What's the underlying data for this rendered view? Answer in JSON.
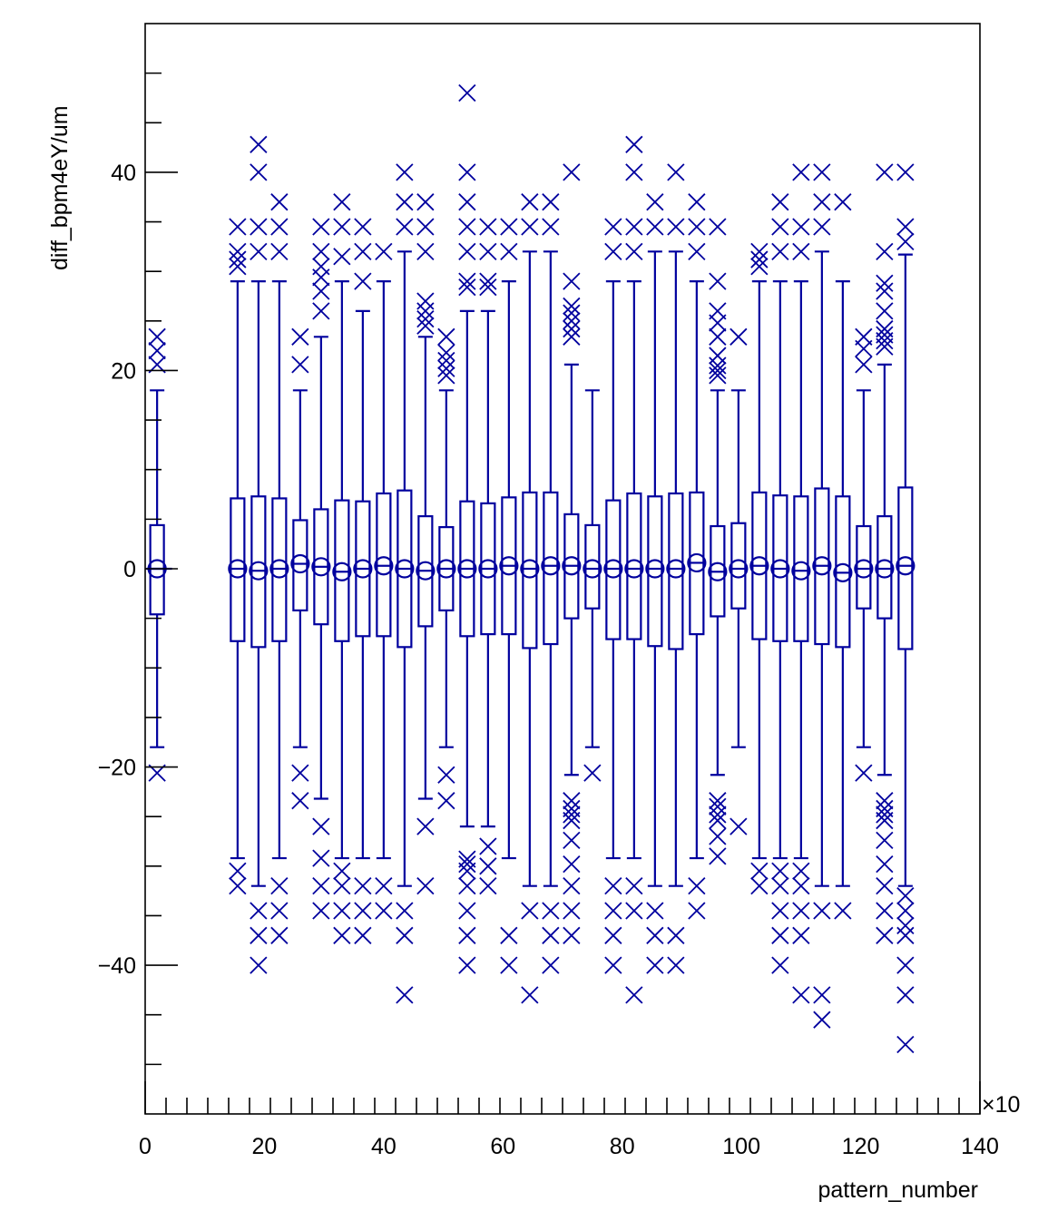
{
  "chart_data": {
    "type": "box",
    "xlabel": "pattern_number",
    "ylabel": "diff_bpm4eY/um",
    "x_multiplier": "×10",
    "xlim": [
      0,
      140
    ],
    "ylim": [
      -55,
      55
    ],
    "x_ticks": [
      "0",
      "20",
      "40",
      "60",
      "80",
      "100",
      "120",
      "140"
    ],
    "y_ticks": [
      "−40",
      "−20",
      "0",
      "20",
      "40"
    ],
    "x_tick_values": [
      0,
      20,
      40,
      60,
      80,
      100,
      120,
      140
    ],
    "y_tick_values": [
      -40,
      -20,
      0,
      20,
      40
    ],
    "x_minor_step": 3.5,
    "y_minor_step": 5,
    "color": "#00009e",
    "grid": false,
    "boxes": [
      {
        "x": 2.0,
        "q1": -4.6,
        "q3": 4.4,
        "med": 0.0,
        "lo": -18.0,
        "hi": 18.0,
        "out": [
          -20.6,
          20.6,
          22.0,
          23.4
        ]
      },
      {
        "x": 15.5,
        "q1": -7.3,
        "q3": 7.1,
        "med": 0.0,
        "lo": -29.2,
        "hi": 29.0,
        "out": [
          -32.0,
          -30.5,
          30.5,
          31.2,
          32.0,
          34.5
        ]
      },
      {
        "x": 19.0,
        "q1": -7.9,
        "q3": 7.3,
        "med": -0.2,
        "lo": -32.0,
        "hi": 29.0,
        "out": [
          -40.0,
          -37.0,
          -34.5,
          32.0,
          34.5,
          40.0,
          42.8
        ]
      },
      {
        "x": 22.5,
        "q1": -7.3,
        "q3": 7.1,
        "med": 0.0,
        "lo": -29.2,
        "hi": 29.0,
        "out": [
          -37.0,
          -34.5,
          -32.0,
          32.0,
          34.5,
          37.0
        ]
      },
      {
        "x": 26.0,
        "q1": -4.2,
        "q3": 4.9,
        "med": 0.5,
        "lo": -18.0,
        "hi": 18.0,
        "out": [
          -23.4,
          -20.6,
          20.6,
          23.4
        ]
      },
      {
        "x": 29.5,
        "q1": -5.6,
        "q3": 6.0,
        "med": 0.2,
        "lo": -23.2,
        "hi": 23.4,
        "out": [
          -34.5,
          -32.0,
          -29.2,
          -26.0,
          26.0,
          28.0,
          29.4,
          30.5,
          32.0,
          34.5
        ]
      },
      {
        "x": 33.0,
        "q1": -7.3,
        "q3": 6.9,
        "med": -0.3,
        "lo": -29.2,
        "hi": 29.0,
        "out": [
          -37.0,
          -34.5,
          -32.0,
          -30.5,
          31.5,
          34.5,
          37.0
        ]
      },
      {
        "x": 36.5,
        "q1": -6.8,
        "q3": 6.8,
        "med": 0.0,
        "lo": -29.2,
        "hi": 26.0,
        "out": [
          -37.0,
          -34.5,
          -32.0,
          29.0,
          32.0,
          34.5
        ]
      },
      {
        "x": 40.0,
        "q1": -6.8,
        "q3": 7.6,
        "med": 0.3,
        "lo": -29.2,
        "hi": 29.0,
        "out": [
          -34.5,
          -32.0,
          32.0
        ]
      },
      {
        "x": 43.5,
        "q1": -7.9,
        "q3": 7.9,
        "med": 0.0,
        "lo": -32.0,
        "hi": 32.0,
        "out": [
          -43.0,
          -37.0,
          -34.5,
          34.5,
          37.0,
          40.0
        ]
      },
      {
        "x": 47.0,
        "q1": -5.8,
        "q3": 5.3,
        "med": -0.2,
        "lo": -23.2,
        "hi": 23.4,
        "out": [
          -32.0,
          -26.0,
          24.5,
          25.2,
          26.0,
          27.0,
          32.0,
          34.5,
          37.0
        ]
      },
      {
        "x": 50.5,
        "q1": -4.2,
        "q3": 4.2,
        "med": 0.0,
        "lo": -18.0,
        "hi": 18.0,
        "out": [
          -23.4,
          -20.8,
          19.5,
          20.2,
          21.0,
          21.8,
          23.4
        ]
      },
      {
        "x": 54.0,
        "q1": -6.8,
        "q3": 6.8,
        "med": 0.0,
        "lo": -26.0,
        "hi": 26.0,
        "out": [
          -40.0,
          -37.0,
          -34.5,
          -32.0,
          -30.5,
          -29.8,
          -29.3,
          28.4,
          29.0,
          32.0,
          34.5,
          37.0,
          40.0,
          48.0
        ]
      },
      {
        "x": 57.5,
        "q1": -6.6,
        "q3": 6.6,
        "med": 0.0,
        "lo": -26.0,
        "hi": 26.0,
        "out": [
          -32.0,
          -30.0,
          -28.0,
          28.4,
          29.0,
          32.0,
          34.5
        ]
      },
      {
        "x": 61.0,
        "q1": -6.6,
        "q3": 7.2,
        "med": 0.3,
        "lo": -29.2,
        "hi": 29.0,
        "out": [
          -40.0,
          -37.0,
          32.0,
          34.5
        ]
      },
      {
        "x": 64.5,
        "q1": -8.0,
        "q3": 7.7,
        "med": 0.0,
        "lo": -32.0,
        "hi": 32.0,
        "out": [
          -43.0,
          -34.5,
          34.5,
          37.0
        ]
      },
      {
        "x": 68.0,
        "q1": -7.6,
        "q3": 7.7,
        "med": 0.3,
        "lo": -32.0,
        "hi": 32.0,
        "out": [
          -40.0,
          -37.0,
          -34.5,
          34.5,
          37.0
        ]
      },
      {
        "x": 71.5,
        "q1": -5.0,
        "q3": 5.5,
        "med": 0.3,
        "lo": -20.8,
        "hi": 20.6,
        "out": [
          -37.0,
          -34.5,
          -32.0,
          -29.8,
          -27.4,
          -25.4,
          -24.8,
          -24.2,
          -23.4,
          23.4,
          24.2,
          25.0,
          25.8,
          26.5,
          29.0,
          40.0
        ]
      },
      {
        "x": 75.0,
        "q1": -4.0,
        "q3": 4.4,
        "med": 0.0,
        "lo": -18.0,
        "hi": 18.0,
        "out": [
          -20.6
        ]
      },
      {
        "x": 78.5,
        "q1": -7.1,
        "q3": 6.9,
        "med": 0.0,
        "lo": -29.2,
        "hi": 29.0,
        "out": [
          -40.0,
          -37.0,
          -34.5,
          -32.0,
          32.0,
          34.5
        ]
      },
      {
        "x": 82.0,
        "q1": -7.1,
        "q3": 7.6,
        "med": 0.0,
        "lo": -29.2,
        "hi": 29.0,
        "out": [
          -43.0,
          -34.5,
          -32.0,
          32.0,
          34.5,
          40.0,
          42.8
        ]
      },
      {
        "x": 85.5,
        "q1": -7.8,
        "q3": 7.3,
        "med": 0.0,
        "lo": -32.0,
        "hi": 32.0,
        "out": [
          -40.0,
          -37.0,
          -34.5,
          34.5,
          37.0
        ]
      },
      {
        "x": 89.0,
        "q1": -8.1,
        "q3": 7.6,
        "med": 0.0,
        "lo": -32.0,
        "hi": 32.0,
        "out": [
          -40.0,
          -37.0,
          34.5,
          40.0
        ]
      },
      {
        "x": 92.5,
        "q1": -6.6,
        "q3": 7.7,
        "med": 0.6,
        "lo": -29.2,
        "hi": 29.0,
        "out": [
          -34.5,
          -32.0,
          32.0,
          34.5,
          37.0
        ]
      },
      {
        "x": 96.0,
        "q1": -4.8,
        "q3": 4.3,
        "med": -0.3,
        "lo": -20.8,
        "hi": 18.0,
        "out": [
          -29.0,
          -27.0,
          -25.4,
          -24.8,
          -24.0,
          -23.4,
          19.5,
          20.0,
          20.5,
          21.5,
          23.4,
          24.8,
          26.0,
          29.0,
          34.5
        ]
      },
      {
        "x": 99.5,
        "q1": -4.0,
        "q3": 4.6,
        "med": 0.0,
        "lo": -18.0,
        "hi": 18.0,
        "out": [
          -26.0,
          23.4
        ]
      },
      {
        "x": 103.0,
        "q1": -7.1,
        "q3": 7.7,
        "med": 0.3,
        "lo": -29.2,
        "hi": 29.0,
        "out": [
          -32.0,
          -30.5,
          30.5,
          31.2,
          32.0
        ]
      },
      {
        "x": 106.5,
        "q1": -7.3,
        "q3": 7.4,
        "med": 0.0,
        "lo": -29.2,
        "hi": 29.0,
        "out": [
          -40.0,
          -37.0,
          -34.5,
          -32.0,
          -30.5,
          32.0,
          34.5,
          37.0
        ]
      },
      {
        "x": 110.0,
        "q1": -7.3,
        "q3": 7.3,
        "med": -0.2,
        "lo": -29.2,
        "hi": 29.0,
        "out": [
          -43.0,
          -37.0,
          -34.5,
          -32.0,
          -30.5,
          32.0,
          34.5,
          40.0
        ]
      },
      {
        "x": 113.5,
        "q1": -7.6,
        "q3": 8.1,
        "med": 0.3,
        "lo": -32.0,
        "hi": 32.0,
        "out": [
          -45.5,
          -43.0,
          -34.5,
          34.5,
          37.0,
          40.0
        ]
      },
      {
        "x": 117.0,
        "q1": -7.9,
        "q3": 7.3,
        "med": -0.4,
        "lo": -32.0,
        "hi": 29.0,
        "out": [
          -34.5,
          37.0
        ]
      },
      {
        "x": 120.5,
        "q1": -4.0,
        "q3": 4.3,
        "med": 0.0,
        "lo": -18.0,
        "hi": 18.0,
        "out": [
          -20.6,
          20.6,
          22.2,
          23.4
        ]
      },
      {
        "x": 124.0,
        "q1": -5.0,
        "q3": 5.3,
        "med": 0.0,
        "lo": -20.8,
        "hi": 20.6,
        "out": [
          -37.0,
          -34.5,
          -32.0,
          -29.8,
          -27.4,
          -25.4,
          -24.8,
          -24.2,
          -23.4,
          22.4,
          23.0,
          23.6,
          24.2,
          26.0,
          28.0,
          28.8,
          32.0,
          40.0
        ]
      },
      {
        "x": 127.5,
        "q1": -8.1,
        "q3": 8.2,
        "med": 0.3,
        "lo": -32.0,
        "hi": 31.7,
        "out": [
          -48.0,
          -43.0,
          -40.0,
          -37.0,
          -36.0,
          -34.5,
          -33.0,
          33.0,
          34.5,
          40.0
        ]
      }
    ]
  }
}
